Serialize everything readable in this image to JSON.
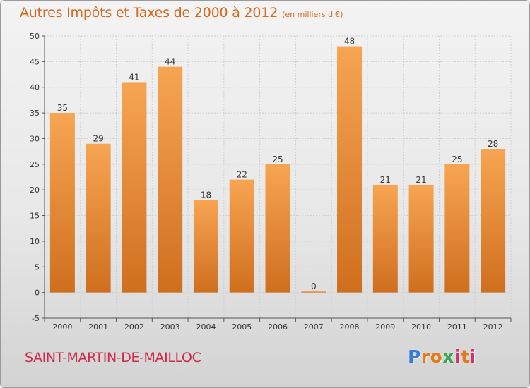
{
  "title": "Autres Impôts et Taxes de 2000 à 2012",
  "unit": "(en milliers d'€)",
  "commune": "SAINT-MARTIN-DE-MAILLOC",
  "logo": {
    "letters": [
      "P",
      "r",
      "o",
      "x",
      "i",
      "t",
      "i"
    ],
    "colors": [
      "#3a7bd5",
      "#e07b1a",
      "#e07b1a",
      "#3aa655",
      "#d62d6e",
      "#e07b1a",
      "#d62d6e"
    ]
  },
  "colors": {
    "bar_light": "#f7a552",
    "bar_dark": "#cf6f1e",
    "title": "#d2691e",
    "commune": "#cc2b4a"
  },
  "chart_data": {
    "type": "bar",
    "categories": [
      "2000",
      "2001",
      "2002",
      "2003",
      "2004",
      "2005",
      "2006",
      "2007",
      "2008",
      "2009",
      "2010",
      "2011",
      "2012"
    ],
    "values": [
      35,
      29,
      41,
      44,
      18,
      22,
      25,
      0,
      48,
      21,
      21,
      25,
      28
    ],
    "title": "Autres Impôts et Taxes de 2000 à 2012",
    "subtitle": "(en milliers d'€)",
    "ylim": [
      -5,
      50
    ],
    "yticks": [
      -5,
      0,
      5,
      10,
      15,
      20,
      25,
      30,
      35,
      40,
      45,
      50
    ],
    "grid": true,
    "legend": "none"
  }
}
